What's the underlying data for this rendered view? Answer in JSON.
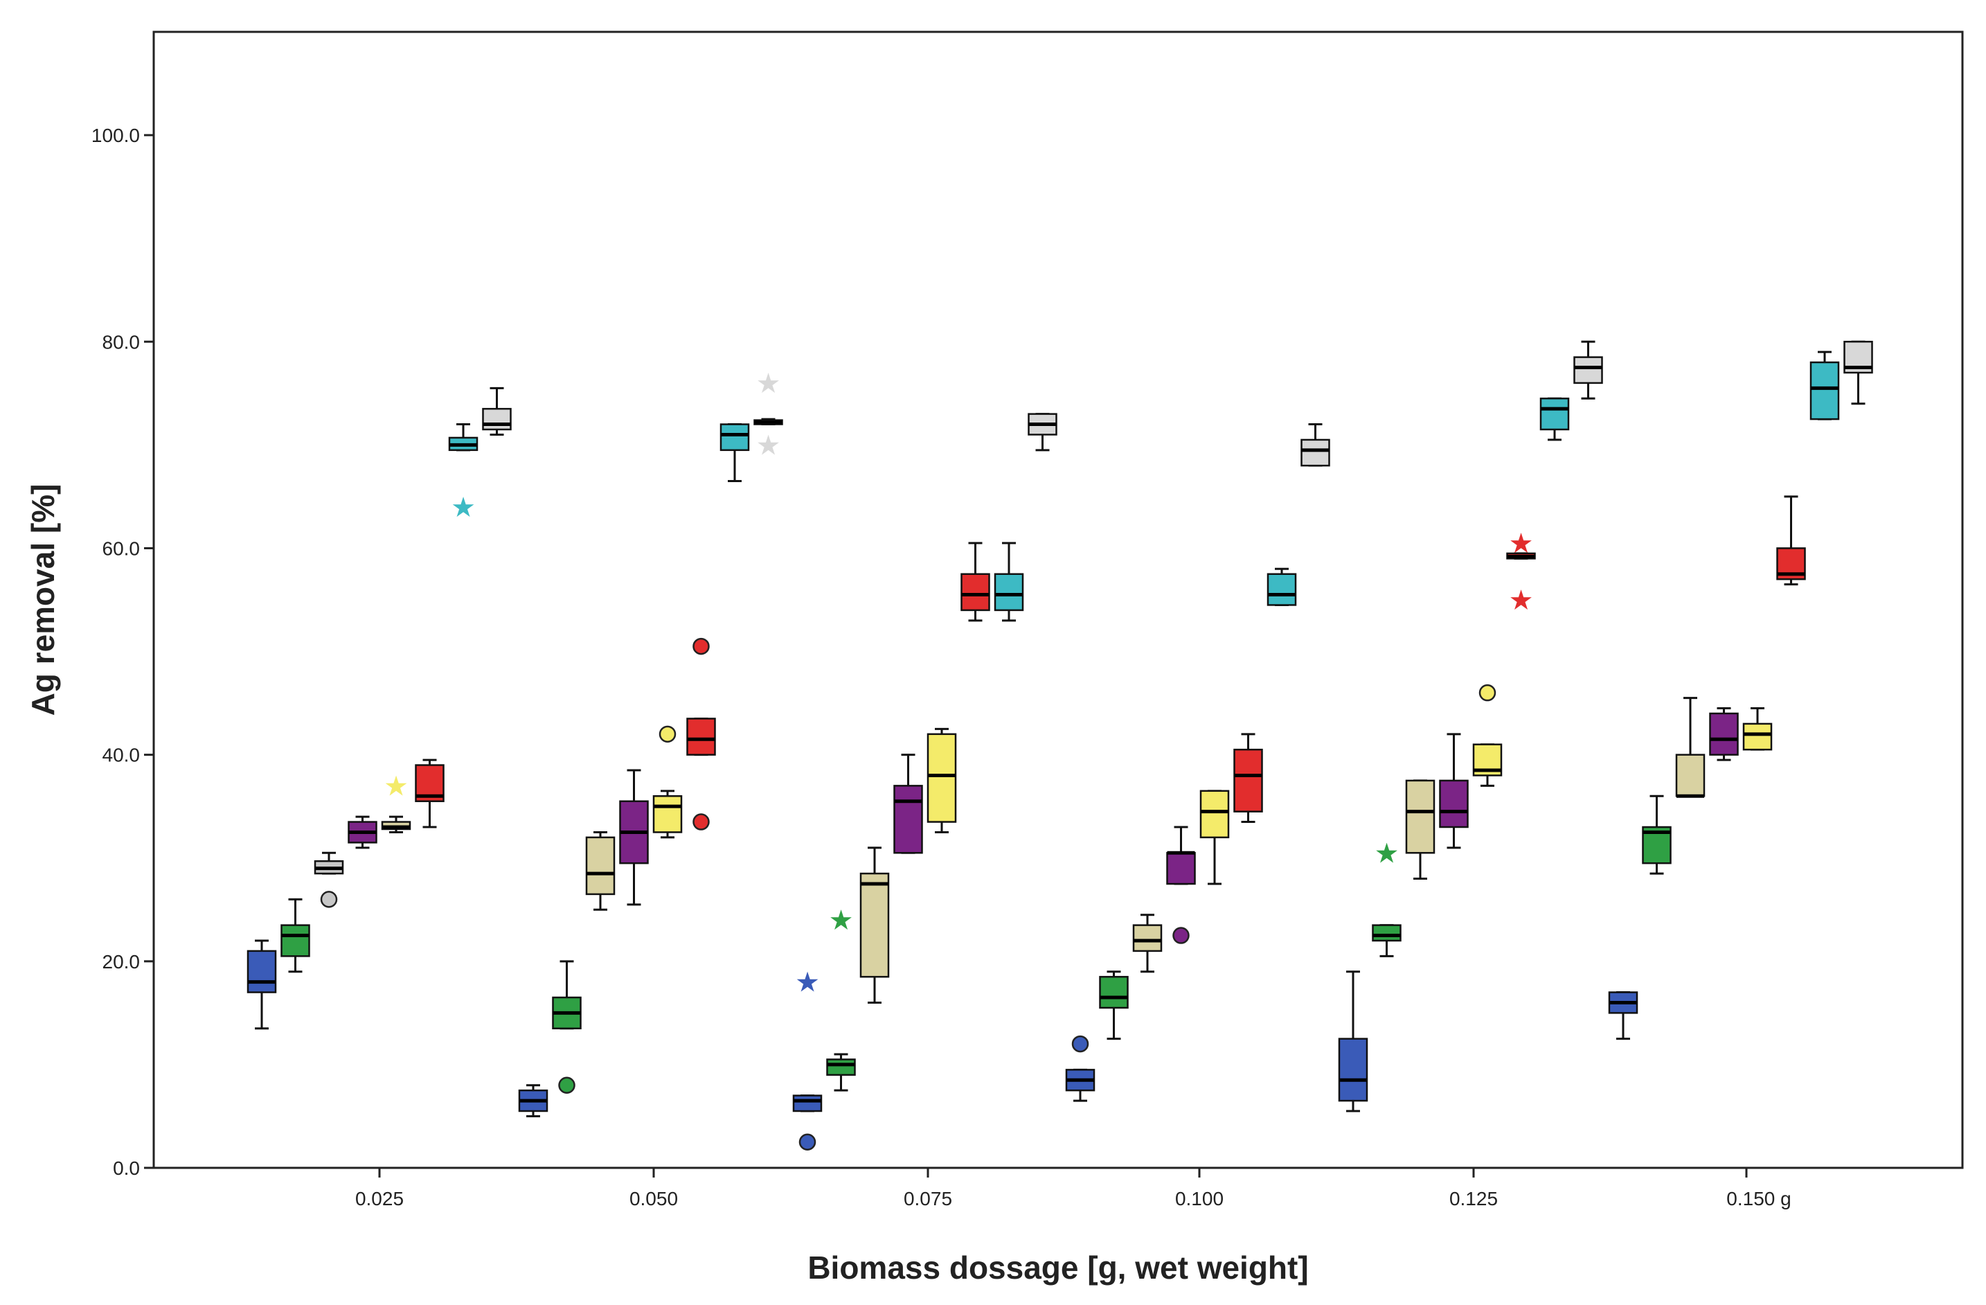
{
  "chart_data": {
    "type": "boxplot",
    "title": "",
    "xlabel": "Biomass dossage [g, wet weight]",
    "ylabel": "Ag removal [%]",
    "ylim": [
      0,
      110
    ],
    "yticks": [
      0,
      20,
      40,
      60,
      80,
      100
    ],
    "ytick_labels": [
      "0.0",
      "20.0",
      "40.0",
      "60.0",
      "80.0",
      "100.0"
    ],
    "x_tick_labels": [
      "0.025",
      "0.050",
      "0.075",
      "0.100",
      "0.125",
      "0.150 g"
    ],
    "grid": false,
    "series_colors": {
      "blue": "#3A5BB8",
      "green": "#2FA044",
      "grey": "#C8C8C8",
      "khaki": "#D9D2A2",
      "purple": "#7B2486",
      "yellow": "#F4EB6A",
      "red": "#E22D2D",
      "cyan": "#3DBAC4",
      "lightgrey": "#D8D8D8"
    },
    "boxes": [
      {
        "group": 1,
        "color": "blue",
        "min": 13.5,
        "q1": 17.0,
        "median": 18.0,
        "q3": 21.0,
        "max": 22.0
      },
      {
        "group": 1,
        "color": "green",
        "min": 19.0,
        "q1": 20.5,
        "median": 22.5,
        "q3": 23.5,
        "max": 26.0
      },
      {
        "group": 1,
        "color": "grey",
        "min": 28.5,
        "q1": 28.5,
        "median": 29.0,
        "q3": 29.7,
        "max": 30.5,
        "outliers": [
          {
            "v": 26.0,
            "m": "o"
          }
        ]
      },
      {
        "group": 1,
        "color": "purple",
        "min": 31.0,
        "q1": 31.5,
        "median": 32.5,
        "q3": 33.5,
        "max": 34.0
      },
      {
        "group": 1,
        "color": "khaki",
        "min": 32.5,
        "q1": 32.8,
        "median": 33.0,
        "q3": 33.5,
        "max": 34.0,
        "outliers": [
          {
            "v": 37.0,
            "m": "*",
            "c": "yellow"
          }
        ]
      },
      {
        "group": 1,
        "color": "red",
        "min": 33.0,
        "q1": 35.5,
        "median": 36.0,
        "q3": 39.0,
        "max": 39.5
      },
      {
        "group": 1,
        "color": "cyan",
        "min": 69.5,
        "q1": 69.5,
        "median": 70.0,
        "q3": 70.7,
        "max": 72.0,
        "outliers": [
          {
            "v": 64.0,
            "m": "*"
          }
        ]
      },
      {
        "group": 1,
        "color": "lightgrey",
        "min": 71.0,
        "q1": 71.5,
        "median": 72.0,
        "q3": 73.5,
        "max": 75.5
      },
      {
        "group": 2,
        "color": "blue",
        "min": 5.0,
        "q1": 5.5,
        "median": 6.5,
        "q3": 7.5,
        "max": 8.0
      },
      {
        "group": 2,
        "color": "green",
        "min": 13.5,
        "q1": 13.5,
        "median": 15.0,
        "q3": 16.5,
        "max": 20.0,
        "outliers": [
          {
            "v": 8.0,
            "m": "o"
          }
        ]
      },
      {
        "group": 2,
        "color": "khaki",
        "min": 25.0,
        "q1": 26.5,
        "median": 28.5,
        "q3": 32.0,
        "max": 32.5
      },
      {
        "group": 2,
        "color": "purple",
        "min": 25.5,
        "q1": 29.5,
        "median": 32.5,
        "q3": 35.5,
        "max": 38.5
      },
      {
        "group": 2,
        "color": "yellow",
        "min": 32.0,
        "q1": 32.5,
        "median": 35.0,
        "q3": 36.0,
        "max": 36.5,
        "outliers": [
          {
            "v": 42.0,
            "m": "o"
          }
        ]
      },
      {
        "group": 2,
        "color": "red",
        "min": 40.0,
        "q1": 40.0,
        "median": 41.5,
        "q3": 43.5,
        "max": 43.5,
        "outliers": [
          {
            "v": 50.5,
            "m": "o"
          },
          {
            "v": 33.5,
            "m": "o"
          }
        ]
      },
      {
        "group": 2,
        "color": "cyan",
        "min": 66.5,
        "q1": 69.5,
        "median": 71.0,
        "q3": 72.0,
        "max": 72.0
      },
      {
        "group": 2,
        "color": "lightgrey",
        "min": 72.0,
        "q1": 72.0,
        "median": 72.2,
        "q3": 72.4,
        "max": 72.5,
        "outliers": [
          {
            "v": 76.0,
            "m": "*"
          },
          {
            "v": 70.0,
            "m": "*"
          }
        ]
      },
      {
        "group": 3,
        "color": "blue",
        "min": 5.5,
        "q1": 5.5,
        "median": 6.5,
        "q3": 7.0,
        "max": 7.0,
        "outliers": [
          {
            "v": 2.5,
            "m": "o"
          },
          {
            "v": 18.0,
            "m": "*"
          }
        ]
      },
      {
        "group": 3,
        "color": "green",
        "min": 7.5,
        "q1": 9.0,
        "median": 10.0,
        "q3": 10.5,
        "max": 11.0,
        "outliers": [
          {
            "v": 24.0,
            "m": "*"
          }
        ]
      },
      {
        "group": 3,
        "color": "khaki",
        "min": 16.0,
        "q1": 18.5,
        "median": 27.5,
        "q3": 28.5,
        "max": 31.0
      },
      {
        "group": 3,
        "color": "purple",
        "min": 30.5,
        "q1": 30.5,
        "median": 35.5,
        "q3": 37.0,
        "max": 40.0
      },
      {
        "group": 3,
        "color": "yellow",
        "min": 32.5,
        "q1": 33.5,
        "median": 38.0,
        "q3": 42.0,
        "max": 42.5
      },
      {
        "group": 3,
        "color": "red",
        "min": 53.0,
        "q1": 54.0,
        "median": 55.5,
        "q3": 57.5,
        "max": 60.5
      },
      {
        "group": 3,
        "color": "cyan",
        "min": 53.0,
        "q1": 54.0,
        "median": 55.5,
        "q3": 57.5,
        "max": 60.5
      },
      {
        "group": 3,
        "color": "lightgrey",
        "min": 69.5,
        "q1": 71.0,
        "median": 72.0,
        "q3": 73.0,
        "max": 73.0
      },
      {
        "group": 4,
        "color": "blue",
        "min": 6.5,
        "q1": 7.5,
        "median": 8.5,
        "q3": 9.5,
        "max": 9.5,
        "outliers": [
          {
            "v": 12.0,
            "m": "o"
          }
        ]
      },
      {
        "group": 4,
        "color": "green",
        "min": 12.5,
        "q1": 15.5,
        "median": 16.5,
        "q3": 18.5,
        "max": 19.0
      },
      {
        "group": 4,
        "color": "khaki",
        "min": 19.0,
        "q1": 21.0,
        "median": 22.0,
        "q3": 23.5,
        "max": 24.5
      },
      {
        "group": 4,
        "color": "purple",
        "min": 27.5,
        "q1": 27.5,
        "median": 30.5,
        "q3": 30.5,
        "max": 33.0,
        "outliers": [
          {
            "v": 22.5,
            "m": "o"
          }
        ]
      },
      {
        "group": 4,
        "color": "yellow",
        "min": 27.5,
        "q1": 32.0,
        "median": 34.5,
        "q3": 36.5,
        "max": 36.5
      },
      {
        "group": 4,
        "color": "red",
        "min": 33.5,
        "q1": 34.5,
        "median": 38.0,
        "q3": 40.5,
        "max": 42.0
      },
      {
        "group": 4,
        "color": "cyan",
        "min": 54.5,
        "q1": 54.5,
        "median": 55.5,
        "q3": 57.5,
        "max": 58.0
      },
      {
        "group": 4,
        "color": "lightgrey",
        "min": 68.0,
        "q1": 68.0,
        "median": 69.5,
        "q3": 70.5,
        "max": 72.0
      },
      {
        "group": 5,
        "color": "blue",
        "min": 5.5,
        "q1": 6.5,
        "median": 8.5,
        "q3": 12.5,
        "max": 19.0
      },
      {
        "group": 5,
        "color": "green",
        "min": 20.5,
        "q1": 22.0,
        "median": 22.5,
        "q3": 23.5,
        "max": 23.5,
        "outliers": [
          {
            "v": 30.5,
            "m": "*"
          }
        ]
      },
      {
        "group": 5,
        "color": "khaki",
        "min": 28.0,
        "q1": 30.5,
        "median": 34.5,
        "q3": 37.5,
        "max": 37.5
      },
      {
        "group": 5,
        "color": "purple",
        "min": 31.0,
        "q1": 33.0,
        "median": 34.5,
        "q3": 37.5,
        "max": 42.0
      },
      {
        "group": 5,
        "color": "yellow",
        "min": 37.0,
        "q1": 38.0,
        "median": 38.5,
        "q3": 41.0,
        "max": 41.0,
        "outliers": [
          {
            "v": 46.0,
            "m": "o"
          }
        ]
      },
      {
        "group": 5,
        "color": "red",
        "min": 59.0,
        "q1": 59.0,
        "median": 59.2,
        "q3": 59.5,
        "max": 59.5,
        "outliers": [
          {
            "v": 60.5,
            "m": "*"
          },
          {
            "v": 55.0,
            "m": "*"
          }
        ]
      },
      {
        "group": 5,
        "color": "cyan",
        "min": 70.5,
        "q1": 71.5,
        "median": 73.5,
        "q3": 74.5,
        "max": 74.5
      },
      {
        "group": 5,
        "color": "lightgrey",
        "min": 74.5,
        "q1": 76.0,
        "median": 77.5,
        "q3": 78.5,
        "max": 80.0
      },
      {
        "group": 6,
        "color": "blue",
        "min": 12.5,
        "q1": 15.0,
        "median": 16.0,
        "q3": 17.0,
        "max": 17.0
      },
      {
        "group": 6,
        "color": "green",
        "min": 28.5,
        "q1": 29.5,
        "median": 32.5,
        "q3": 33.0,
        "max": 36.0
      },
      {
        "group": 6,
        "color": "khaki",
        "min": 36.0,
        "q1": 36.0,
        "median": 36.0,
        "q3": 40.0,
        "max": 45.5
      },
      {
        "group": 6,
        "color": "purple",
        "min": 39.5,
        "q1": 40.0,
        "median": 41.5,
        "q3": 44.0,
        "max": 44.5
      },
      {
        "group": 6,
        "color": "yellow",
        "min": 40.5,
        "q1": 40.5,
        "median": 42.0,
        "q3": 43.0,
        "max": 44.5
      },
      {
        "group": 6,
        "color": "red",
        "min": 56.5,
        "q1": 57.0,
        "median": 57.5,
        "q3": 60.0,
        "max": 65.0
      },
      {
        "group": 6,
        "color": "cyan",
        "min": 72.5,
        "q1": 72.5,
        "median": 75.5,
        "q3": 78.0,
        "max": 79.0
      },
      {
        "group": 6,
        "color": "lightgrey",
        "min": 74.0,
        "q1": 77.0,
        "median": 77.5,
        "q3": 80.0,
        "max": 80.0
      }
    ]
  }
}
